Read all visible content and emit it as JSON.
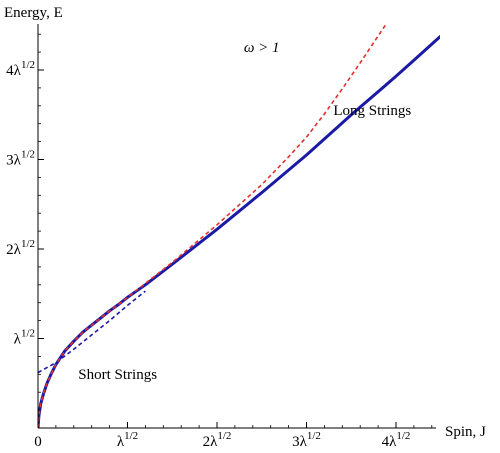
{
  "chart_data": {
    "type": "line",
    "title": "",
    "xlabel": "Spin, J",
    "ylabel": "Energy, E",
    "xlim": [
      0,
      4.5
    ],
    "ylim": [
      0,
      4.5
    ],
    "x_ticks": [
      {
        "value": 0,
        "label": "0"
      },
      {
        "value": 1,
        "label": "λ^1/2"
      },
      {
        "value": 2,
        "label": "2λ^1/2"
      },
      {
        "value": 3,
        "label": "3λ^1/2"
      },
      {
        "value": 4,
        "label": "4λ^1/2"
      }
    ],
    "y_ticks": [
      {
        "value": 1,
        "label": "λ^1/2"
      },
      {
        "value": 2,
        "label": "2λ^1/2"
      },
      {
        "value": 3,
        "label": "3λ^1/2"
      },
      {
        "value": 4,
        "label": "4λ^1/2"
      }
    ],
    "annotations": [
      {
        "text": "ω > 1",
        "x": 2.3,
        "y": 4.2
      },
      {
        "text": "Long Strings",
        "x": 3.3,
        "y": 3.5
      },
      {
        "text": "Short Strings",
        "x": 0.45,
        "y": 0.55
      }
    ],
    "series": [
      {
        "style": "solid",
        "color": "#1a1aa6",
        "points": [
          [
            0.0,
            0.0
          ],
          [
            0.01,
            0.14
          ],
          [
            0.03,
            0.27
          ],
          [
            0.06,
            0.38
          ],
          [
            0.1,
            0.5
          ],
          [
            0.15,
            0.61
          ],
          [
            0.2,
            0.71
          ],
          [
            0.3,
            0.86
          ],
          [
            0.4,
            0.97
          ],
          [
            0.5,
            1.07
          ],
          [
            0.6,
            1.15
          ],
          [
            0.7,
            1.23
          ],
          [
            0.8,
            1.31
          ],
          [
            0.9,
            1.38
          ],
          [
            1.0,
            1.46
          ],
          [
            1.2,
            1.6
          ],
          [
            1.5,
            1.83
          ],
          [
            2.0,
            2.22
          ],
          [
            2.5,
            2.63
          ],
          [
            3.0,
            3.05
          ],
          [
            3.5,
            3.5
          ],
          [
            4.0,
            3.93
          ],
          [
            4.2,
            4.11
          ],
          [
            4.5,
            4.38
          ]
        ]
      },
      {
        "style": "dashed",
        "color": "#e03030",
        "points": [
          [
            0.0,
            0.0
          ],
          [
            0.01,
            0.14
          ],
          [
            0.03,
            0.27
          ],
          [
            0.06,
            0.38
          ],
          [
            0.1,
            0.5
          ],
          [
            0.15,
            0.61
          ],
          [
            0.2,
            0.71
          ],
          [
            0.3,
            0.86
          ],
          [
            0.4,
            0.97
          ],
          [
            0.5,
            1.07
          ],
          [
            0.6,
            1.15
          ],
          [
            0.7,
            1.23
          ],
          [
            0.8,
            1.31
          ],
          [
            0.9,
            1.38
          ],
          [
            1.0,
            1.46
          ],
          [
            1.5,
            1.85
          ],
          [
            2.0,
            2.27
          ],
          [
            2.5,
            2.72
          ],
          [
            2.8,
            3.03
          ],
          [
            3.0,
            3.25
          ],
          [
            3.2,
            3.51
          ],
          [
            3.4,
            3.79
          ],
          [
            3.6,
            4.08
          ],
          [
            3.8,
            4.38
          ],
          [
            3.88,
            4.5
          ]
        ]
      },
      {
        "style": "dashed",
        "color": "#1a1aa6",
        "points": [
          [
            0.0,
            0.62
          ],
          [
            0.2,
            0.73
          ],
          [
            0.4,
            0.88
          ],
          [
            0.6,
            1.04
          ],
          [
            0.8,
            1.2
          ],
          [
            1.0,
            1.37
          ],
          [
            1.2,
            1.53
          ]
        ]
      }
    ]
  }
}
